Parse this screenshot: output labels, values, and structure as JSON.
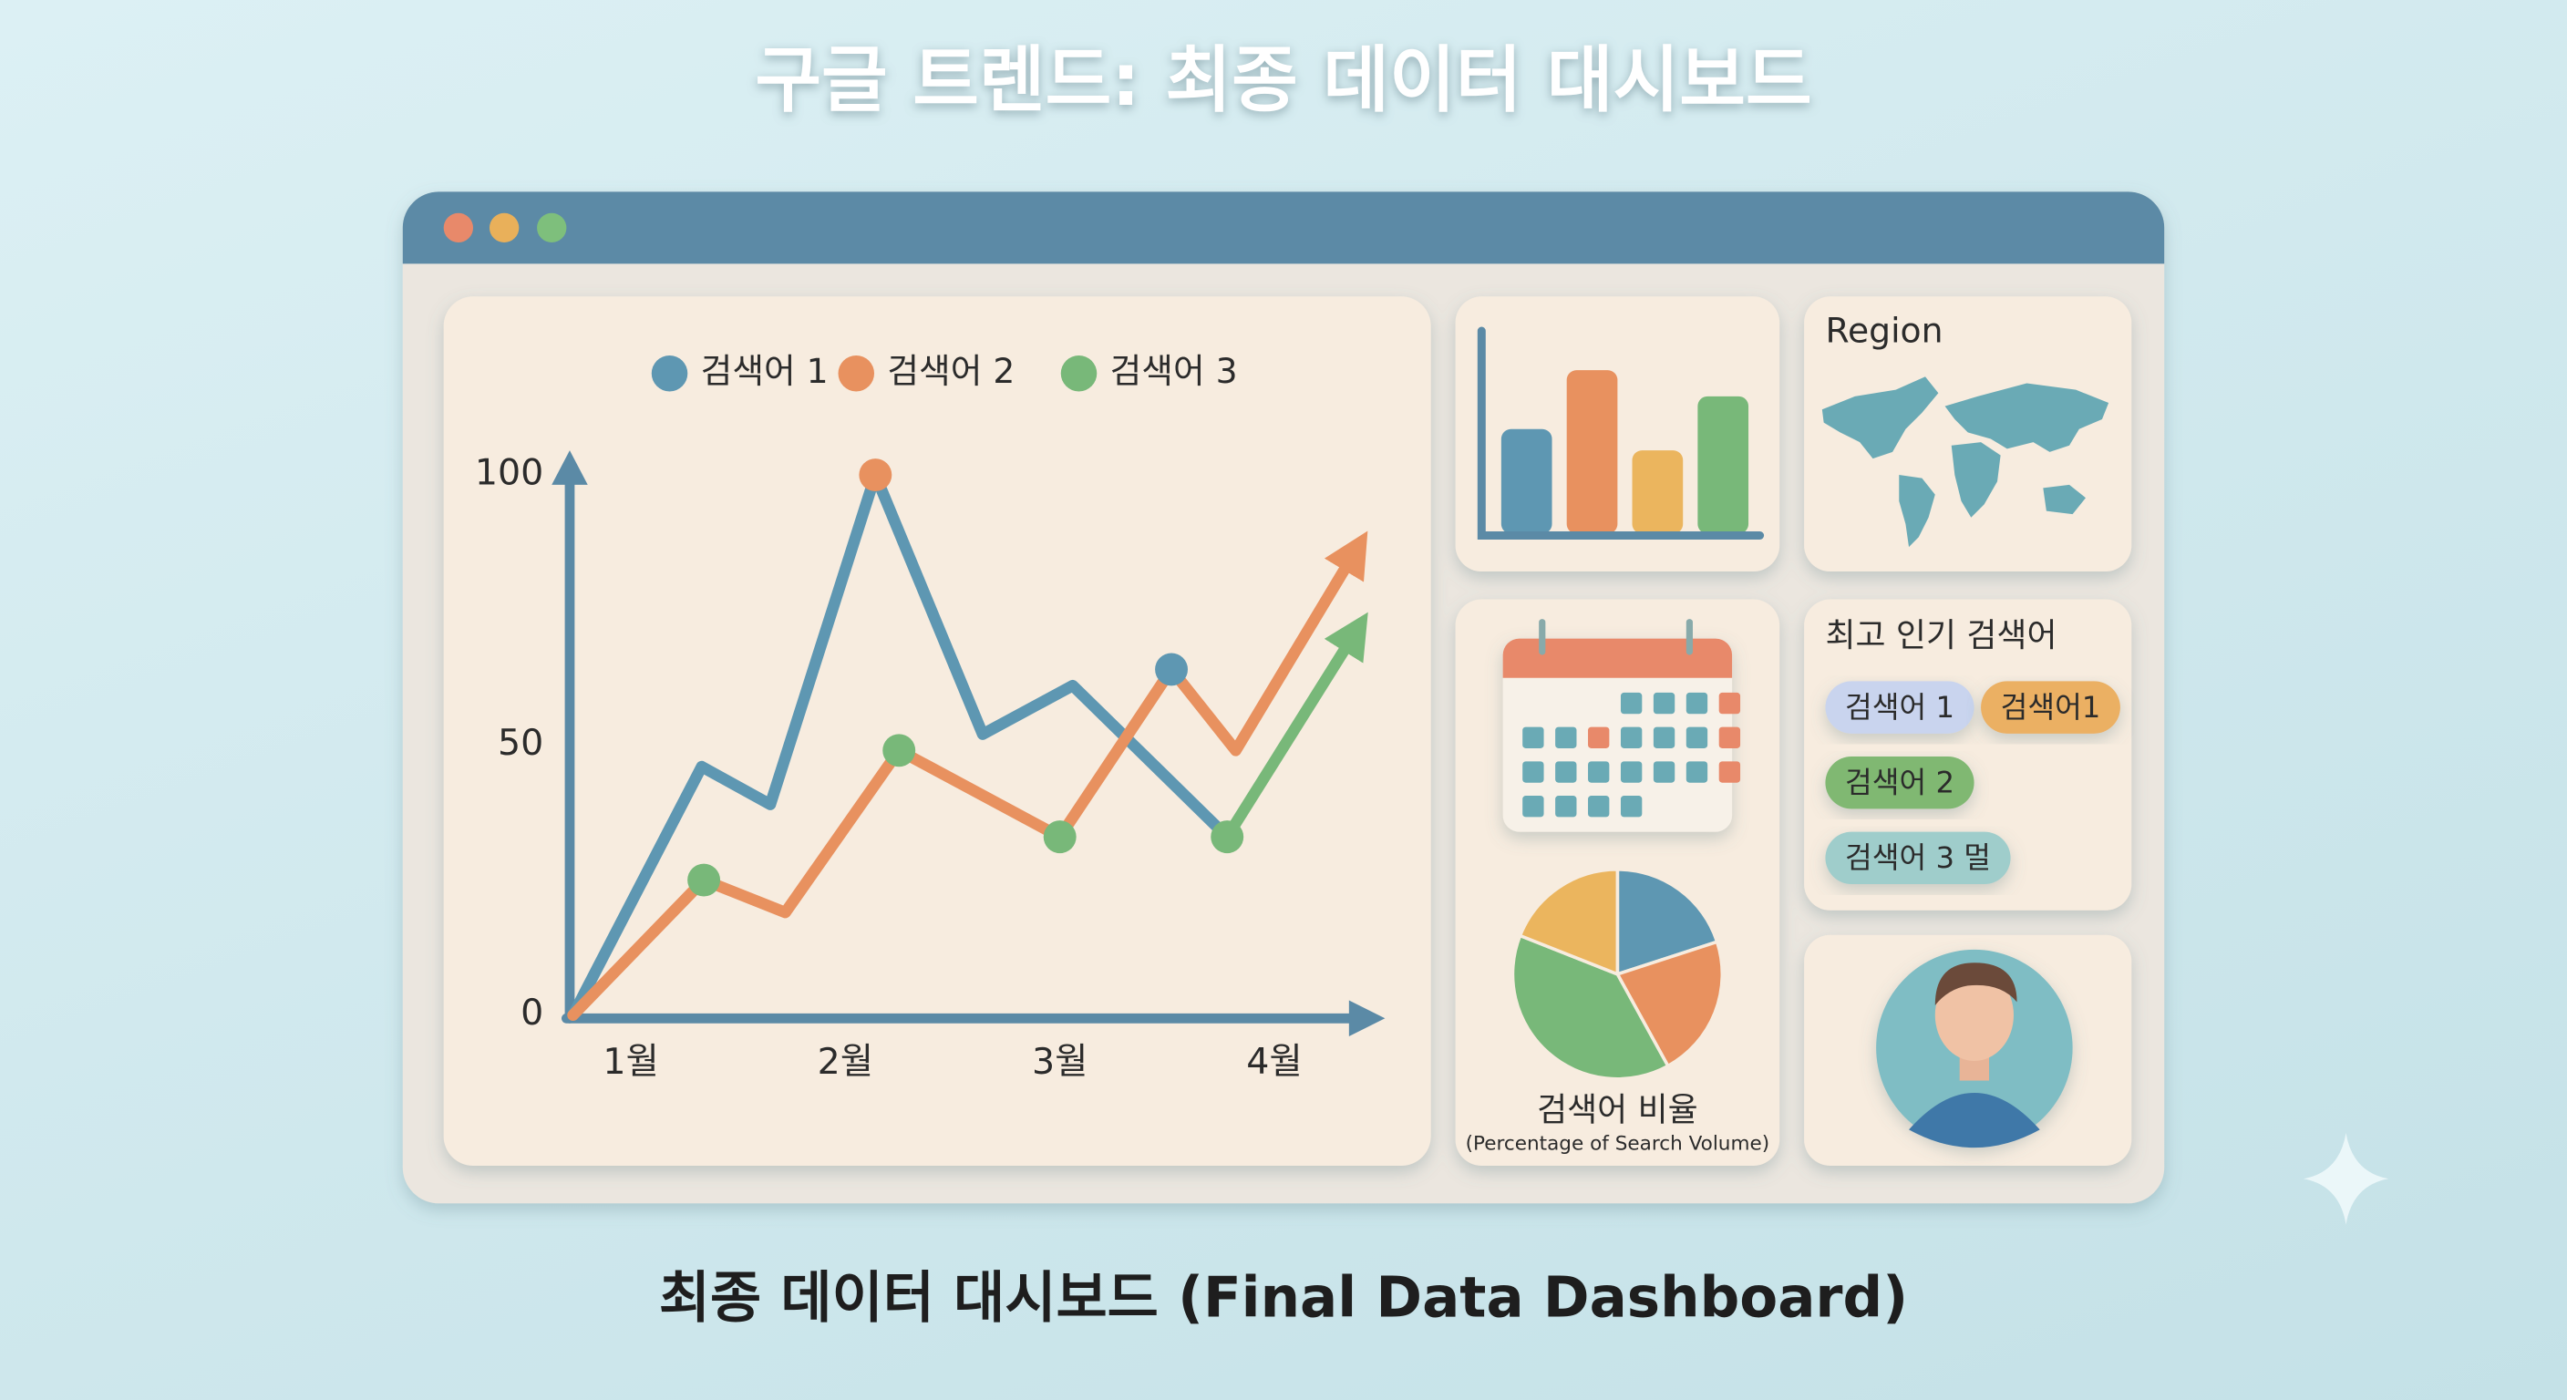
{
  "title": "구글 트렌드: 최종 데이터 대시보드",
  "chart_data": {
    "type": "line",
    "xlim": [
      0.73,
      4.47
    ],
    "ylim": [
      0,
      100
    ],
    "yticks": [
      0,
      50,
      100
    ],
    "xticks": [
      {
        "value": 1,
        "label": "1월"
      },
      {
        "value": 2,
        "label": "2월"
      },
      {
        "value": 3,
        "label": "3월"
      },
      {
        "value": 4,
        "label": "4월"
      }
    ],
    "series": [
      {
        "name": "검색어 1",
        "color": "#5e97b2",
        "x": [
          0.73,
          1.33,
          1.65,
          2.14,
          2.64,
          3.06,
          3.78
        ],
        "values": [
          0,
          46,
          39,
          100,
          52,
          61,
          33
        ],
        "arrow": false,
        "markers": {
          "x": [
            3.52
          ],
          "values": [
            64
          ]
        }
      },
      {
        "name": "검색어 2",
        "color": "#e8915f",
        "x": [
          0.73,
          1.34,
          1.72,
          2.25,
          3.0,
          3.52,
          3.82,
          4.38
        ],
        "values": [
          0,
          25,
          19,
          49,
          33,
          64,
          49,
          86
        ],
        "arrow": true,
        "markers": {
          "x": [
            2.14
          ],
          "values": [
            100
          ]
        }
      },
      {
        "name": "검색어 3",
        "color": "#78b879",
        "x": [
          3.78,
          4.38
        ],
        "values": [
          33,
          71
        ],
        "arrow": true,
        "markers": {
          "x": [
            1.34,
            2.25,
            3.0,
            3.78
          ],
          "values": [
            25,
            49,
            33,
            33
          ]
        }
      }
    ]
  },
  "bar_icon": {
    "type": "bar",
    "ylim": [
      0,
      100
    ],
    "values": [
      64,
      100,
      51,
      84
    ],
    "colors": [
      "#5e97b2",
      "#e8915f",
      "#ebb55e",
      "#78b879"
    ]
  },
  "region_panel": {
    "title": "Region"
  },
  "popular_panel": {
    "title": "최고 인기 검색어",
    "chips": [
      {
        "label": "검색어 1",
        "color": "#c9d4ee"
      },
      {
        "label": "검색어1",
        "color": "#ebb064"
      },
      {
        "label": "검색어 2",
        "color": "#80b872"
      },
      {
        "label": "검색어 3 멀",
        "color": "#9fcdcb"
      }
    ]
  },
  "pie": {
    "type": "pie",
    "title": "검색어 비율",
    "subtitle": "(Percentage of Search Volume)",
    "values": [
      20,
      22,
      39,
      19
    ],
    "colors": [
      "#5e97b2",
      "#e8915f",
      "#78b879",
      "#ebb55e"
    ]
  },
  "caption": "최종 데이터 대시보드 (Final Data Dashboard)"
}
